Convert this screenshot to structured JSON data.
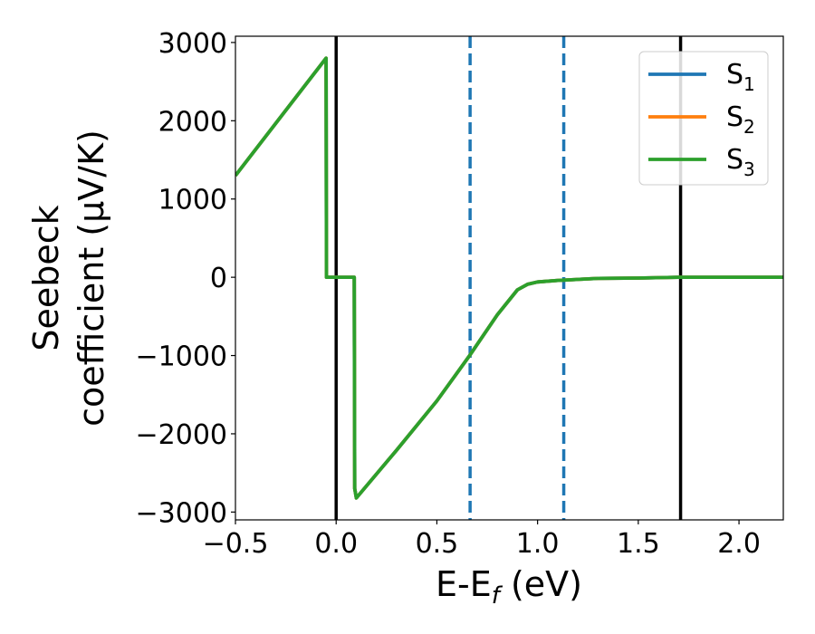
{
  "chart_data": {
    "type": "line",
    "xlabel": "E-E",
    "xlabel_sub": "f",
    "xlabel_unit": " (eV)",
    "ylabel_line1": "Seebeck",
    "ylabel_line2": "coefficient  (μV/K)",
    "xlim": [
      -0.5,
      2.22
    ],
    "ylim": [
      -3100,
      3080
    ],
    "xticks": [
      -0.5,
      0.0,
      0.5,
      1.0,
      1.5,
      2.0
    ],
    "xtick_labels": [
      "−0.5",
      "0.0",
      "0.5",
      "1.0",
      "1.5",
      "2.0"
    ],
    "yticks": [
      -3000,
      -2000,
      -1000,
      0,
      1000,
      2000,
      3000
    ],
    "ytick_labels": [
      "−3000",
      "−2000",
      "−1000",
      "0",
      "1000",
      "2000",
      "3000"
    ],
    "grid": false,
    "legend_position": "top-right",
    "series": [
      {
        "name": "S",
        "sub": "1",
        "color": "#1f77b4",
        "x": [
          -0.5,
          -0.05,
          -0.048,
          0.09,
          0.092,
          0.1,
          0.3,
          0.5,
          0.66,
          0.8,
          0.9,
          0.95,
          1.0,
          1.1,
          1.3,
          1.5,
          1.7,
          2.0,
          2.22
        ],
        "y": [
          1300,
          2800,
          0,
          0,
          -2700,
          -2820,
          -2210,
          -1580,
          -1010,
          -480,
          -160,
          -90,
          -60,
          -40,
          -15,
          -10,
          0,
          0,
          0
        ]
      },
      {
        "name": "S",
        "sub": "2",
        "color": "#ff7f0e",
        "x": [
          -0.5,
          -0.05,
          -0.048,
          0.09,
          0.092,
          0.1,
          0.3,
          0.5,
          0.66,
          0.8,
          0.9,
          0.95,
          1.0,
          1.1,
          1.3,
          1.5,
          1.7,
          2.0,
          2.22
        ],
        "y": [
          1300,
          2800,
          0,
          0,
          -2700,
          -2820,
          -2210,
          -1580,
          -1010,
          -480,
          -160,
          -90,
          -60,
          -40,
          -15,
          -10,
          0,
          0,
          0
        ]
      },
      {
        "name": "S",
        "sub": "3",
        "color": "#2ca02c",
        "x": [
          -0.5,
          -0.05,
          -0.048,
          0.09,
          0.092,
          0.1,
          0.3,
          0.5,
          0.66,
          0.8,
          0.9,
          0.95,
          1.0,
          1.1,
          1.3,
          1.5,
          1.7,
          2.0,
          2.22
        ],
        "y": [
          1300,
          2800,
          0,
          0,
          -2700,
          -2820,
          -2210,
          -1580,
          -1010,
          -480,
          -160,
          -90,
          -60,
          -40,
          -15,
          -10,
          0,
          0,
          0
        ]
      }
    ],
    "vlines": [
      {
        "x": 0.0,
        "color": "#000000",
        "style": "solid"
      },
      {
        "x": 1.71,
        "color": "#000000",
        "style": "solid"
      },
      {
        "x": 0.665,
        "color": "#1f77b4",
        "style": "dashed"
      },
      {
        "x": 1.13,
        "color": "#1f77b4",
        "style": "dashed"
      }
    ]
  }
}
